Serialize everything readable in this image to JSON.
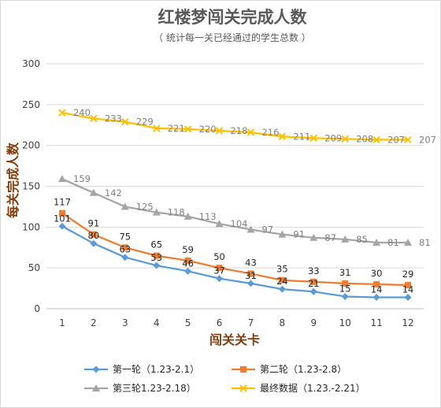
{
  "chart_data": {
    "type": "line",
    "title": "红楼梦闯关完成人数",
    "subtitle": "（ 统计每一关已经通过的学生总数 ）",
    "xlabel": "闯关关卡",
    "ylabel": "每关完成人数",
    "categories": [
      "1",
      "2",
      "3",
      "4",
      "5",
      "6",
      "7",
      "8",
      "9",
      "10",
      "11",
      "12"
    ],
    "ylim": [
      0,
      300
    ],
    "yticks": [
      "0",
      "50",
      "100",
      "150",
      "200",
      "250",
      "300"
    ],
    "grid": true,
    "legend_position": "bottom",
    "series": [
      {
        "name": "第一轮（1.23-2.1）",
        "color": "#5b9bd5",
        "marker": "diamond",
        "values": [
          101,
          80,
          63,
          53,
          46,
          37,
          31,
          24,
          21,
          15,
          14,
          14
        ]
      },
      {
        "name": "第二轮（1.23-2.8）",
        "color": "#ed7d31",
        "marker": "square",
        "values": [
          117,
          91,
          75,
          65,
          59,
          50,
          43,
          35,
          33,
          31,
          30,
          29
        ]
      },
      {
        "name": "第三轮1.23-2.18）",
        "color": "#a5a5a5",
        "marker": "triangle",
        "values": [
          159,
          142,
          125,
          118,
          113,
          104,
          97,
          91,
          87,
          85,
          81,
          81
        ]
      },
      {
        "name": "最终数据（1.23.-2.21）",
        "color": "#ffc000",
        "marker": "x",
        "values": [
          240,
          233,
          229,
          221,
          220,
          218,
          216,
          211,
          209,
          208,
          207,
          207
        ]
      }
    ]
  }
}
